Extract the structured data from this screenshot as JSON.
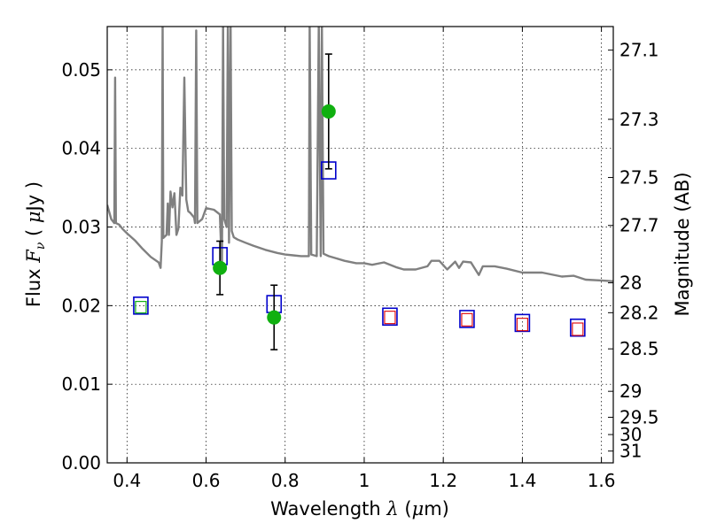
{
  "chart_data": {
    "type": "scatter",
    "xlabel": "Wavelength  λ (μm)",
    "ylabel": "Flux  Fν  ( μJy )",
    "y2label": "Magnitude (AB)",
    "xlim": [
      0.35,
      1.63
    ],
    "ylim": [
      0.0,
      0.0555
    ],
    "grid": true,
    "xticks": [
      0.4,
      0.6,
      0.8,
      1.0,
      1.2,
      1.4,
      1.6
    ],
    "xtick_labels": [
      "0.4",
      "0.6",
      "0.8",
      "1",
      "1.2",
      "1.4",
      "1.6"
    ],
    "yticks": [
      0.0,
      0.01,
      0.02,
      0.03,
      0.04,
      0.05
    ],
    "ytick_labels": [
      "0.00",
      "0.01",
      "0.02",
      "0.03",
      "0.04",
      "0.05"
    ],
    "magnitude_ticks": [
      {
        "label": "27.1",
        "flux": 0.0525
      },
      {
        "label": "27.3",
        "flux": 0.0437
      },
      {
        "label": "27.5",
        "flux": 0.0363
      },
      {
        "label": "27.7",
        "flux": 0.0302
      },
      {
        "label": "28",
        "flux": 0.0229
      },
      {
        "label": "28.2",
        "flux": 0.0191
      },
      {
        "label": "28.5",
        "flux": 0.0145
      },
      {
        "label": "29",
        "flux": 0.0091
      },
      {
        "label": "29.5",
        "flux": 0.0058
      },
      {
        "label": "30",
        "flux": 0.0036
      },
      {
        "label": "31",
        "flux": 0.0015
      }
    ],
    "observed_flux": [
      {
        "x": 0.435,
        "y": 0.0198
      },
      {
        "x": 0.635,
        "y": 0.0248,
        "err": 0.0034
      },
      {
        "x": 0.772,
        "y": 0.0185,
        "err": 0.0041
      },
      {
        "x": 0.91,
        "y": 0.0447,
        "err": 0.0073
      }
    ],
    "model_photometry": [
      {
        "x": 0.435,
        "y": 0.02
      },
      {
        "x": 0.635,
        "y": 0.0263
      },
      {
        "x": 0.772,
        "y": 0.0202
      },
      {
        "x": 0.91,
        "y": 0.0372
      },
      {
        "x": 1.065,
        "y": 0.0186
      },
      {
        "x": 1.26,
        "y": 0.0183
      },
      {
        "x": 1.4,
        "y": 0.0178
      },
      {
        "x": 1.54,
        "y": 0.0172
      }
    ],
    "secondary_markers": [
      {
        "x": 1.065,
        "y": 0.0185
      },
      {
        "x": 1.26,
        "y": 0.0182
      },
      {
        "x": 1.4,
        "y": 0.0176
      },
      {
        "x": 1.54,
        "y": 0.017
      }
    ],
    "model_spectrum": {
      "points": [
        [
          0.35,
          0.0328
        ],
        [
          0.36,
          0.031
        ],
        [
          0.368,
          0.0305
        ],
        [
          0.37,
          0.049
        ],
        [
          0.372,
          0.0305
        ],
        [
          0.38,
          0.0303
        ],
        [
          0.39,
          0.0297
        ],
        [
          0.4,
          0.0292
        ],
        [
          0.42,
          0.0283
        ],
        [
          0.44,
          0.0272
        ],
        [
          0.46,
          0.0262
        ],
        [
          0.48,
          0.0255
        ],
        [
          0.485,
          0.0248
        ],
        [
          0.488,
          0.0282
        ],
        [
          0.49,
          0.056
        ],
        [
          0.492,
          0.0286
        ],
        [
          0.5,
          0.029
        ],
        [
          0.503,
          0.033
        ],
        [
          0.506,
          0.029
        ],
        [
          0.51,
          0.0345
        ],
        [
          0.515,
          0.0325
        ],
        [
          0.52,
          0.0343
        ],
        [
          0.525,
          0.029
        ],
        [
          0.53,
          0.0298
        ],
        [
          0.535,
          0.035
        ],
        [
          0.54,
          0.034
        ],
        [
          0.545,
          0.049
        ],
        [
          0.55,
          0.0335
        ],
        [
          0.555,
          0.032
        ],
        [
          0.56,
          0.0318
        ],
        [
          0.57,
          0.0312
        ],
        [
          0.572,
          0.0305
        ],
        [
          0.575,
          0.055
        ],
        [
          0.578,
          0.0305
        ],
        [
          0.59,
          0.031
        ],
        [
          0.6,
          0.0324
        ],
        [
          0.62,
          0.0322
        ],
        [
          0.635,
          0.0316
        ],
        [
          0.64,
          0.0245
        ],
        [
          0.643,
          0.056
        ],
        [
          0.646,
          0.031
        ],
        [
          0.652,
          0.03
        ],
        [
          0.655,
          0.056
        ],
        [
          0.658,
          0.028
        ],
        [
          0.662,
          0.056
        ],
        [
          0.665,
          0.0295
        ],
        [
          0.67,
          0.0287
        ],
        [
          0.68,
          0.0284
        ],
        [
          0.7,
          0.028
        ],
        [
          0.72,
          0.0276
        ],
        [
          0.75,
          0.0271
        ],
        [
          0.78,
          0.0267
        ],
        [
          0.8,
          0.0265
        ],
        [
          0.82,
          0.0264
        ],
        [
          0.84,
          0.0263
        ],
        [
          0.86,
          0.0263
        ],
        [
          0.862,
          0.056
        ],
        [
          0.866,
          0.0265
        ],
        [
          0.88,
          0.0263
        ],
        [
          0.885,
          0.056
        ],
        [
          0.89,
          0.0263
        ],
        [
          0.893,
          0.056
        ],
        [
          0.897,
          0.0266
        ],
        [
          0.91,
          0.0263
        ],
        [
          0.93,
          0.026
        ],
        [
          0.95,
          0.0257
        ],
        [
          0.98,
          0.0254
        ],
        [
          1.0,
          0.0254
        ],
        [
          1.02,
          0.0252
        ],
        [
          1.05,
          0.0255
        ],
        [
          1.08,
          0.0249
        ],
        [
          1.1,
          0.0246
        ],
        [
          1.13,
          0.0246
        ],
        [
          1.16,
          0.025
        ],
        [
          1.17,
          0.0257
        ],
        [
          1.19,
          0.0257
        ],
        [
          1.21,
          0.0246
        ],
        [
          1.23,
          0.0256
        ],
        [
          1.24,
          0.0248
        ],
        [
          1.25,
          0.0256
        ],
        [
          1.27,
          0.0255
        ],
        [
          1.29,
          0.0239
        ],
        [
          1.3,
          0.025
        ],
        [
          1.33,
          0.025
        ],
        [
          1.36,
          0.0247
        ],
        [
          1.4,
          0.0242
        ],
        [
          1.45,
          0.0242
        ],
        [
          1.5,
          0.0237
        ],
        [
          1.53,
          0.0238
        ],
        [
          1.56,
          0.0233
        ],
        [
          1.6,
          0.0232
        ],
        [
          1.63,
          0.0231
        ]
      ]
    }
  },
  "colors": {
    "spectrum": "#808080",
    "observed": "#10b010",
    "model_box": "#0000cc",
    "secondary_box": "#dd0000",
    "errorbar": "#000000"
  }
}
